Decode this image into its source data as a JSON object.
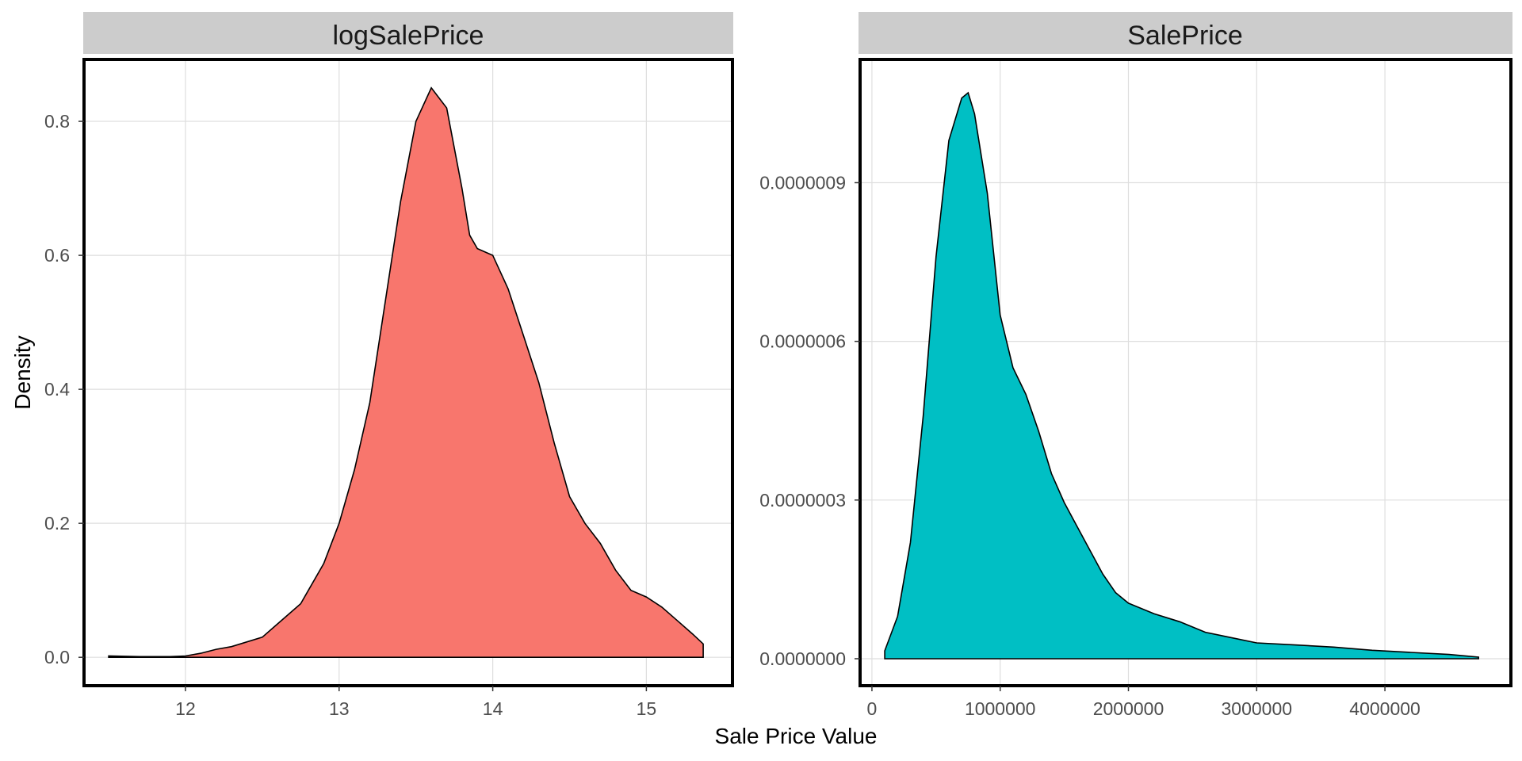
{
  "chart_data": [
    {
      "type": "area",
      "panel": "logSalePrice",
      "xlabel": "Sale Price Value",
      "ylabel": "Density",
      "xlim": [
        11.35,
        15.55
      ],
      "ylim": [
        -0.04,
        0.89
      ],
      "x_ticks": [
        12,
        13,
        14,
        15
      ],
      "x_tick_labels": [
        "12",
        "13",
        "14",
        "15"
      ],
      "y_ticks": [
        0,
        0.2,
        0.4,
        0.6,
        0.8
      ],
      "y_tick_labels": [
        "0.0",
        "0.2",
        "0.4",
        "0.6",
        "0.8"
      ],
      "fill": "#F8766D",
      "grid": true,
      "x": [
        11.5,
        11.7,
        11.9,
        12.0,
        12.1,
        12.2,
        12.3,
        12.5,
        12.6,
        12.75,
        12.9,
        13.0,
        13.1,
        13.2,
        13.3,
        13.4,
        13.5,
        13.6,
        13.7,
        13.8,
        13.85,
        13.9,
        14.0,
        14.1,
        14.2,
        14.3,
        14.4,
        14.5,
        14.6,
        14.7,
        14.8,
        14.9,
        15.0,
        15.1,
        15.2,
        15.3,
        15.37
      ],
      "y": [
        0.002,
        0.001,
        0.001,
        0.002,
        0.006,
        0.012,
        0.016,
        0.03,
        0.05,
        0.08,
        0.14,
        0.2,
        0.28,
        0.38,
        0.53,
        0.68,
        0.8,
        0.85,
        0.82,
        0.7,
        0.63,
        0.61,
        0.6,
        0.55,
        0.48,
        0.41,
        0.32,
        0.24,
        0.2,
        0.17,
        0.13,
        0.1,
        0.09,
        0.075,
        0.055,
        0.035,
        0.02
      ]
    },
    {
      "type": "area",
      "panel": "SalePrice",
      "xlabel": "Sale Price Value",
      "ylabel": "Density",
      "xlim": [
        -80000,
        4970000
      ],
      "ylim": [
        -4.8e-08,
        1.13e-06
      ],
      "x_ticks": [
        0,
        1000000,
        2000000,
        3000000,
        4000000
      ],
      "x_tick_labels": [
        "0",
        "1000000",
        "2000000",
        "3000000",
        "4000000"
      ],
      "y_ticks": [
        0,
        3e-07,
        6e-07,
        9e-07
      ],
      "y_tick_labels": [
        "0.0000000",
        "0.0000003",
        "0.0000006",
        "0.0000009"
      ],
      "fill": "#00BFC4",
      "grid": true,
      "x": [
        100000,
        200000,
        300000,
        400000,
        500000,
        600000,
        700000,
        750000,
        800000,
        900000,
        1000000,
        1100000,
        1200000,
        1300000,
        1400000,
        1500000,
        1600000,
        1700000,
        1800000,
        1900000,
        2000000,
        2200000,
        2400000,
        2600000,
        2800000,
        3000000,
        3300000,
        3600000,
        3900000,
        4200000,
        4500000,
        4730000
      ],
      "y": [
        1.5e-08,
        8e-08,
        2.2e-07,
        4.6e-07,
        7.6e-07,
        9.8e-07,
        1.06e-06,
        1.07e-06,
        1.03e-06,
        8.8e-07,
        6.5e-07,
        5.5e-07,
        5e-07,
        4.3e-07,
        3.5e-07,
        2.95e-07,
        2.5e-07,
        2.05e-07,
        1.6e-07,
        1.25e-07,
        1.05e-07,
        8.5e-08,
        7e-08,
        5e-08,
        4e-08,
        3e-08,
        2.6e-08,
        2.2e-08,
        1.6e-08,
        1.2e-08,
        8e-09,
        3e-09
      ]
    }
  ]
}
